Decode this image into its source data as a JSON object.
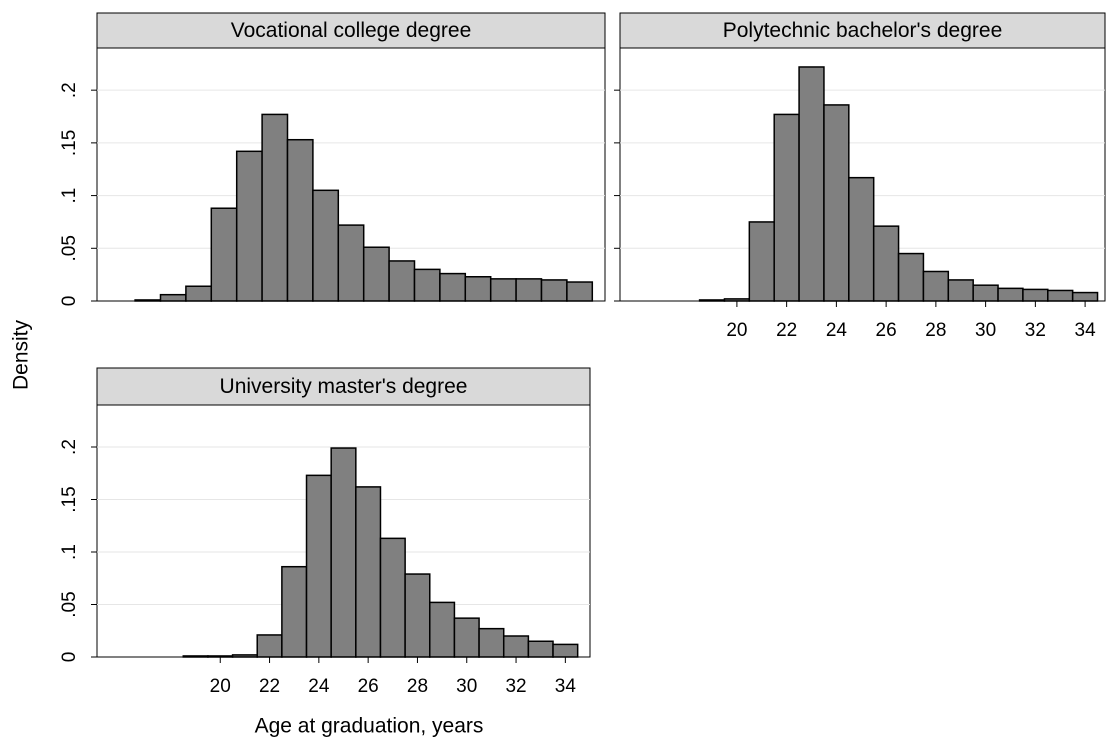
{
  "y_label": "Density",
  "x_label": "Age at graduation, years",
  "chart_data": [
    {
      "type": "histogram",
      "title": "Vocational college degree",
      "color": "#808080",
      "grid": true,
      "bins": [
        16.5,
        17.5,
        18.5,
        19.5,
        20.5,
        21.5,
        22.5,
        23.5,
        24.5,
        25.5,
        26.5,
        27.5,
        28.5,
        29.5,
        30.5,
        31.5,
        32.5,
        33.5,
        34.5
      ],
      "values": [
        0.001,
        0.006,
        0.014,
        0.088,
        0.142,
        0.177,
        0.153,
        0.105,
        0.072,
        0.051,
        0.038,
        0.03,
        0.026,
        0.023,
        0.021,
        0.021,
        0.02,
        0.018
      ],
      "xlim": [
        15,
        35
      ],
      "ylim": [
        0,
        0.24
      ],
      "yticks": [
        0,
        {
          "value": 0.05,
          "label": ".05"
        },
        {
          "value": 0.1,
          "label": ".1"
        },
        {
          "value": 0.15,
          "label": ".15"
        },
        {
          "value": 0.2,
          "label": ".2"
        }
      ]
    },
    {
      "type": "histogram",
      "title": "Polytechnic bachelor's degree",
      "color": "#808080",
      "grid": true,
      "bins": [
        16.5,
        17.5,
        18.5,
        19.5,
        20.5,
        21.5,
        22.5,
        23.5,
        24.5,
        25.5,
        26.5,
        27.5,
        28.5,
        29.5,
        30.5,
        31.5,
        32.5,
        33.5,
        34.5
      ],
      "values": [
        0,
        0,
        0.001,
        0.002,
        0.075,
        0.177,
        0.222,
        0.186,
        0.117,
        0.071,
        0.045,
        0.028,
        0.02,
        0.015,
        0.012,
        0.011,
        0.01,
        0.008
      ],
      "xlim": [
        15.3,
        34.8
      ],
      "ylim": [
        0,
        0.24
      ],
      "xticks": [
        20,
        22,
        24,
        26,
        28,
        30,
        32,
        34
      ],
      "yticks": [
        0,
        {
          "value": 0.05,
          "label": ".05"
        },
        {
          "value": 0.1,
          "label": ".1"
        },
        {
          "value": 0.15,
          "label": ".15"
        },
        {
          "value": 0.2,
          "label": ".2"
        }
      ]
    },
    {
      "type": "histogram",
      "title": "University master's degree",
      "color": "#808080",
      "grid": true,
      "bins": [
        16.5,
        17.5,
        18.5,
        19.5,
        20.5,
        21.5,
        22.5,
        23.5,
        24.5,
        25.5,
        26.5,
        27.5,
        28.5,
        29.5,
        30.5,
        31.5,
        32.5,
        33.5,
        34.5
      ],
      "values": [
        0,
        0,
        0.001,
        0.001,
        0.002,
        0.021,
        0.086,
        0.173,
        0.199,
        0.162,
        0.113,
        0.079,
        0.052,
        0.037,
        0.027,
        0.02,
        0.015,
        0.012
      ],
      "xlim": [
        15,
        35
      ],
      "ylim": [
        0,
        0.24
      ],
      "xticks": [
        20,
        22,
        24,
        26,
        28,
        30,
        32,
        34
      ],
      "yticks": [
        0,
        {
          "value": 0.05,
          "label": ".05"
        },
        {
          "value": 0.1,
          "label": ".1"
        },
        {
          "value": 0.15,
          "label": ".15"
        },
        {
          "value": 0.2,
          "label": ".2"
        }
      ]
    }
  ]
}
